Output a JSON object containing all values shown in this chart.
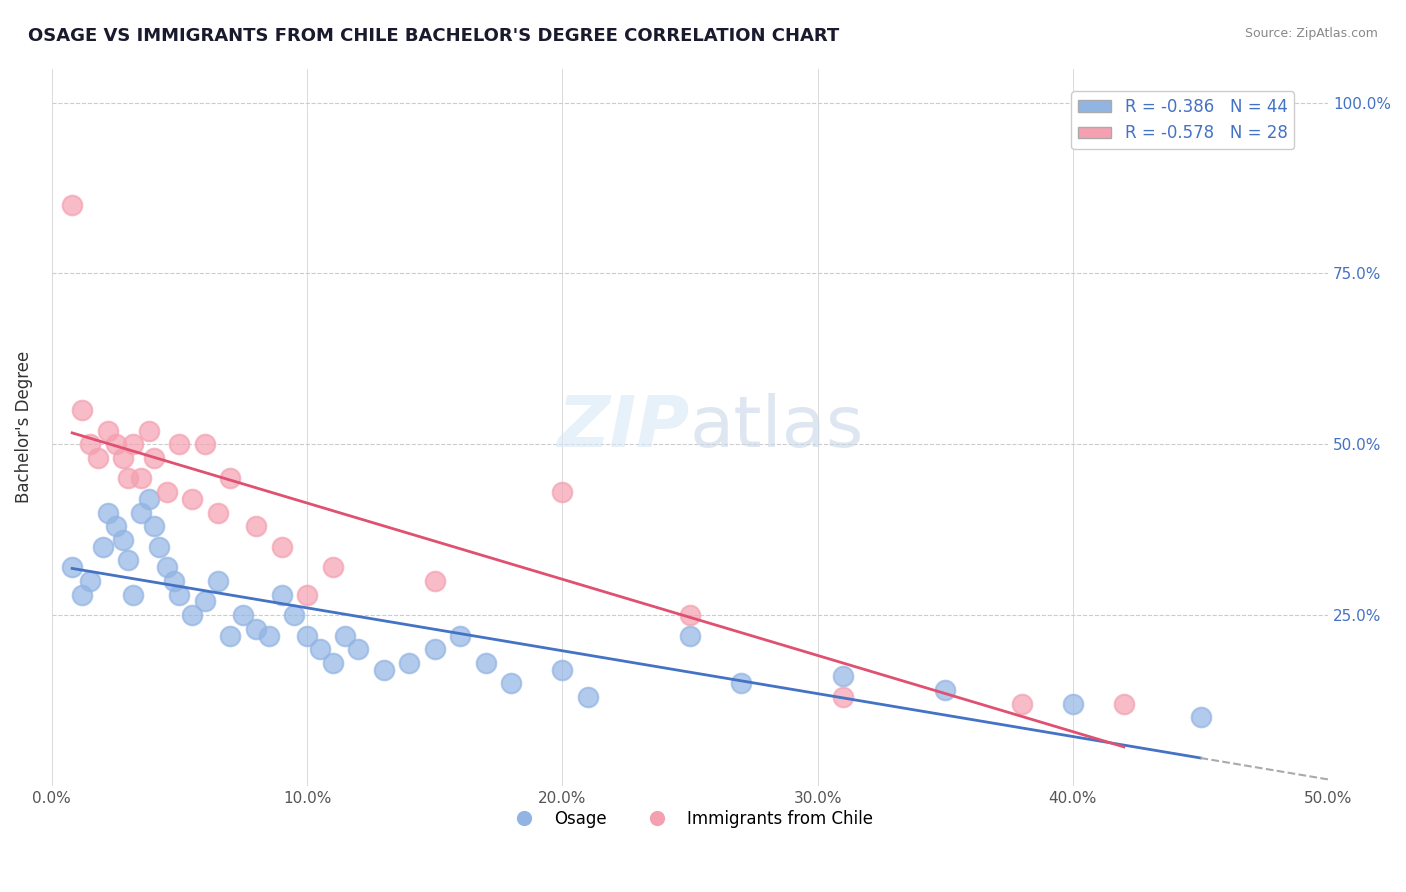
{
  "title": "OSAGE VS IMMIGRANTS FROM CHILE BACHELOR'S DEGREE CORRELATION CHART",
  "source_text": "Source: ZipAtlas.com",
  "ylabel": "Bachelor's Degree",
  "x_tick_labels": [
    "0.0%",
    "10.0%",
    "20.0%",
    "30.0%",
    "40.0%",
    "50.0%"
  ],
  "x_tick_values": [
    0.0,
    0.1,
    0.2,
    0.3,
    0.4,
    0.5
  ],
  "y_tick_labels": [
    "100.0%",
    "75.0%",
    "50.0%",
    "25.0%"
  ],
  "y_tick_values": [
    1.0,
    0.75,
    0.5,
    0.25
  ],
  "xlim": [
    0.0,
    0.5
  ],
  "ylim": [
    0.0,
    1.05
  ],
  "legend_label1": "Osage",
  "legend_label2": "Immigrants from Chile",
  "R1": -0.386,
  "N1": 44,
  "R2": -0.578,
  "N2": 28,
  "color_blue": "#92b4e3",
  "color_pink": "#f4a0b0",
  "color_line_blue": "#4472c4",
  "color_line_pink": "#e05070",
  "background_color": "#ffffff",
  "grid_color": "#cccccc",
  "osage_x": [
    0.008,
    0.012,
    0.015,
    0.02,
    0.022,
    0.025,
    0.028,
    0.03,
    0.032,
    0.035,
    0.038,
    0.04,
    0.042,
    0.045,
    0.048,
    0.05,
    0.055,
    0.06,
    0.065,
    0.07,
    0.075,
    0.08,
    0.085,
    0.09,
    0.095,
    0.1,
    0.105,
    0.11,
    0.115,
    0.12,
    0.13,
    0.14,
    0.15,
    0.16,
    0.17,
    0.18,
    0.2,
    0.21,
    0.25,
    0.27,
    0.31,
    0.35,
    0.4,
    0.45
  ],
  "osage_y": [
    0.32,
    0.28,
    0.3,
    0.35,
    0.4,
    0.38,
    0.36,
    0.33,
    0.28,
    0.4,
    0.42,
    0.38,
    0.35,
    0.32,
    0.3,
    0.28,
    0.25,
    0.27,
    0.3,
    0.22,
    0.25,
    0.23,
    0.22,
    0.28,
    0.25,
    0.22,
    0.2,
    0.18,
    0.22,
    0.2,
    0.17,
    0.18,
    0.2,
    0.22,
    0.18,
    0.15,
    0.17,
    0.13,
    0.22,
    0.15,
    0.16,
    0.14,
    0.12,
    0.1
  ],
  "chile_x": [
    0.008,
    0.012,
    0.015,
    0.018,
    0.022,
    0.025,
    0.028,
    0.03,
    0.032,
    0.035,
    0.038,
    0.04,
    0.045,
    0.05,
    0.055,
    0.06,
    0.065,
    0.07,
    0.08,
    0.09,
    0.1,
    0.11,
    0.15,
    0.2,
    0.25,
    0.31,
    0.38,
    0.42
  ],
  "chile_y": [
    0.85,
    0.55,
    0.5,
    0.48,
    0.52,
    0.5,
    0.48,
    0.45,
    0.5,
    0.45,
    0.52,
    0.48,
    0.43,
    0.5,
    0.42,
    0.5,
    0.4,
    0.45,
    0.38,
    0.35,
    0.28,
    0.32,
    0.3,
    0.43,
    0.25,
    0.13,
    0.12,
    0.12
  ]
}
